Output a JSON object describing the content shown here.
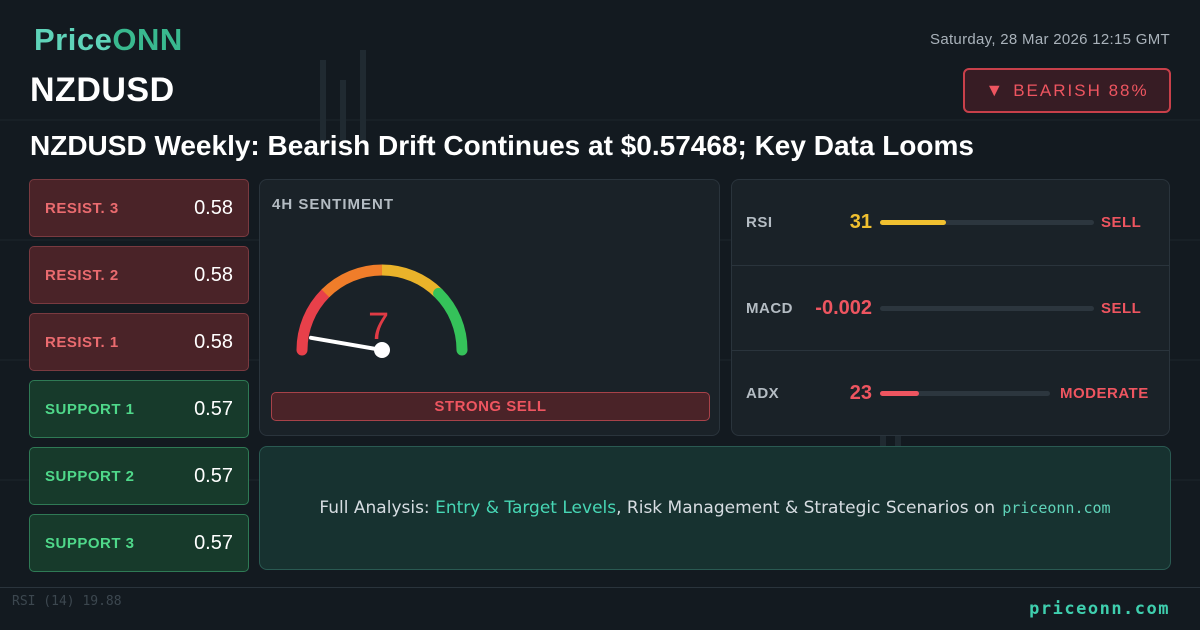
{
  "logo": {
    "part1": "Price",
    "part2": "ONN"
  },
  "datetime": "Saturday, 28 Mar 2026 12:15 GMT",
  "symbol": "NZDUSD",
  "badge": {
    "icon": "triangle-down-icon",
    "label": "BEARISH 88%"
  },
  "headline": "NZDUSD Weekly: Bearish Drift Continues at $0.57468; Key Data Looms",
  "levels": [
    {
      "kind": "resistance",
      "label": "RESIST. 3",
      "value": "0.58"
    },
    {
      "kind": "resistance",
      "label": "RESIST. 2",
      "value": "0.58"
    },
    {
      "kind": "resistance",
      "label": "RESIST. 1",
      "value": "0.58"
    },
    {
      "kind": "support",
      "label": "SUPPORT 1",
      "value": "0.57"
    },
    {
      "kind": "support",
      "label": "SUPPORT 2",
      "value": "0.57"
    },
    {
      "kind": "support",
      "label": "SUPPORT 3",
      "value": "0.57"
    }
  ],
  "sentiment": {
    "title": "4H SENTIMENT",
    "value": "7",
    "gauge_fraction": 0.07,
    "label": "STRONG SELL"
  },
  "indicators": [
    {
      "name": "RSI",
      "value": "31",
      "signal": "SELL",
      "fill_fraction": 0.31,
      "value_color": "#f0c030",
      "bar_color": "#f0c030",
      "signal_color": "#ee5560"
    },
    {
      "name": "MACD",
      "value": "-0.002",
      "signal": "SELL",
      "fill_fraction": 0.0,
      "value_color": "#ee5560",
      "bar_color": "#ee5560",
      "signal_color": "#ee5560"
    },
    {
      "name": "ADX",
      "value": "23",
      "signal": "MODERATE",
      "fill_fraction": 0.23,
      "value_color": "#ee5560",
      "bar_color": "#ee5560",
      "signal_color": "#ee5560"
    }
  ],
  "cta": {
    "prefix": "Full Analysis: ",
    "highlight": "Entry & Target Levels",
    "suffix": ", Risk Management & Strategic Scenarios on",
    "site": "priceonn.com"
  },
  "footer": {
    "rsi_label": "RSI (14) 19.88",
    "site": "priceonn.com"
  },
  "colors": {
    "bearish": "#ee5560",
    "bullish": "#4fd88a",
    "brand": "#3fcfae"
  }
}
